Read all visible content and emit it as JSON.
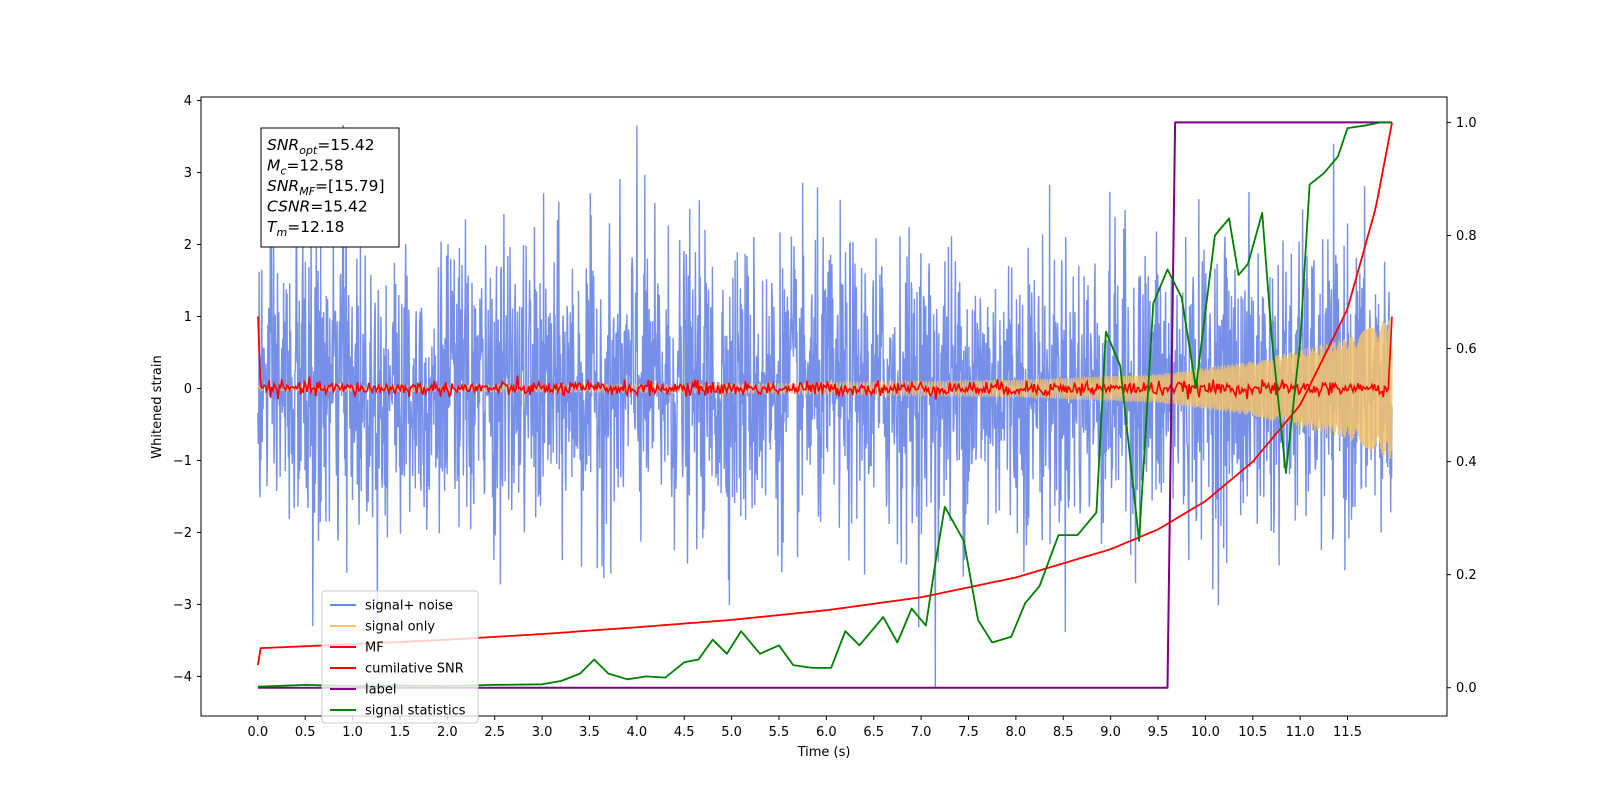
{
  "chart_data": {
    "type": "line",
    "xlabel": "Time (s)",
    "ylabel_left": "Whitened strain",
    "ylabel_right": "",
    "xlim": [
      -0.6,
      12.55
    ],
    "ylim_left": [
      -4.55,
      4.05
    ],
    "ylim_right": [
      -0.05,
      1.045
    ],
    "grid": false,
    "legend_position": "lower-left",
    "x_ticks": [
      "0.0",
      "0.5",
      "1.0",
      "1.5",
      "2.0",
      "2.5",
      "3.0",
      "3.5",
      "4.0",
      "4.5",
      "5.0",
      "5.5",
      "6.0",
      "6.5",
      "7.0",
      "7.5",
      "8.0",
      "8.5",
      "9.0",
      "9.5",
      "10.0",
      "10.5",
      "11.0",
      "11.5"
    ],
    "y_ticks_left": [
      "4",
      "3",
      "2",
      "1",
      "0",
      "−1",
      "−2",
      "−3",
      "−4"
    ],
    "y_ticks_right": [
      "1.0",
      "0.8",
      "0.6",
      "0.4",
      "0.2",
      "0.0"
    ],
    "info_box": [
      {
        "base": "SNR",
        "sub": "opt",
        "value": "=15.42"
      },
      {
        "base": "M",
        "sub": "c",
        "value": "=12.58"
      },
      {
        "base": "SNR",
        "sub": "MF",
        "value": "=[15.79]"
      },
      {
        "base": "CSNR",
        "sub": "",
        "value": "=15.42"
      },
      {
        "base": "T",
        "sub": "m",
        "value": "=12.18"
      }
    ],
    "series": [
      {
        "name": "signal+ noise",
        "axis": "left",
        "color": "#6a86e6",
        "x_range": [
          0,
          11.97
        ],
        "noise_std": 1.0,
        "notable_extremes": [
          {
            "x": 4.0,
            "y": 3.65
          },
          {
            "x": 0.9,
            "y": 3.65
          },
          {
            "x": 7.15,
            "y": -4.15
          },
          {
            "x": 0.58,
            "y": -3.3
          }
        ]
      },
      {
        "name": "signal only",
        "axis": "left",
        "color": "#f5c36b",
        "envelope": [
          {
            "x": 0,
            "amp": 0.03
          },
          {
            "x": 5.0,
            "amp": 0.06
          },
          {
            "x": 8.0,
            "amp": 0.12
          },
          {
            "x": 9.5,
            "amp": 0.2
          },
          {
            "x": 10.5,
            "amp": 0.38
          },
          {
            "x": 11.5,
            "amp": 0.7
          },
          {
            "x": 11.97,
            "amp": 1.0
          }
        ]
      },
      {
        "name": "MF",
        "axis": "left",
        "color": "#ff0000",
        "points": [
          {
            "x": 0,
            "y": 1.0
          },
          {
            "x": 0.03,
            "y": 0.0
          },
          {
            "x": 11.93,
            "y": 0.0
          },
          {
            "x": 11.97,
            "y": 1.0
          }
        ],
        "noise_std": 0.05
      },
      {
        "name": "cumilative SNR",
        "axis": "right",
        "color": "#ff0000",
        "points": [
          {
            "x": 0,
            "y": 0.04
          },
          {
            "x": 0.02,
            "y": 0.07
          },
          {
            "x": 1,
            "y": 0.077
          },
          {
            "x": 2,
            "y": 0.085
          },
          {
            "x": 3,
            "y": 0.095
          },
          {
            "x": 4,
            "y": 0.107
          },
          {
            "x": 5,
            "y": 0.12
          },
          {
            "x": 6,
            "y": 0.137
          },
          {
            "x": 7,
            "y": 0.16
          },
          {
            "x": 8,
            "y": 0.195
          },
          {
            "x": 9,
            "y": 0.245
          },
          {
            "x": 9.5,
            "y": 0.28
          },
          {
            "x": 10,
            "y": 0.33
          },
          {
            "x": 10.5,
            "y": 0.4
          },
          {
            "x": 11,
            "y": 0.5
          },
          {
            "x": 11.5,
            "y": 0.67
          },
          {
            "x": 11.8,
            "y": 0.85
          },
          {
            "x": 11.97,
            "y": 1.0
          }
        ]
      },
      {
        "name": "label",
        "axis": "right",
        "color": "#800080",
        "points": [
          {
            "x": 0,
            "y": 0.0
          },
          {
            "x": 9.6,
            "y": 0.0
          },
          {
            "x": 9.68,
            "y": 1.0
          },
          {
            "x": 11.97,
            "y": 1.0
          }
        ]
      },
      {
        "name": "signal statistics",
        "axis": "right",
        "color": "#008000",
        "points": [
          {
            "x": 0,
            "y": 0.002
          },
          {
            "x": 0.5,
            "y": 0.005
          },
          {
            "x": 1,
            "y": 0.003
          },
          {
            "x": 1.5,
            "y": 0.004
          },
          {
            "x": 2,
            "y": 0.003
          },
          {
            "x": 2.5,
            "y": 0.005
          },
          {
            "x": 3,
            "y": 0.006
          },
          {
            "x": 3.2,
            "y": 0.012
          },
          {
            "x": 3.4,
            "y": 0.025
          },
          {
            "x": 3.55,
            "y": 0.05
          },
          {
            "x": 3.7,
            "y": 0.025
          },
          {
            "x": 3.9,
            "y": 0.015
          },
          {
            "x": 4.1,
            "y": 0.02
          },
          {
            "x": 4.3,
            "y": 0.018
          },
          {
            "x": 4.5,
            "y": 0.045
          },
          {
            "x": 4.65,
            "y": 0.05
          },
          {
            "x": 4.8,
            "y": 0.085
          },
          {
            "x": 4.95,
            "y": 0.06
          },
          {
            "x": 5.1,
            "y": 0.1
          },
          {
            "x": 5.3,
            "y": 0.06
          },
          {
            "x": 5.5,
            "y": 0.075
          },
          {
            "x": 5.65,
            "y": 0.04
          },
          {
            "x": 5.85,
            "y": 0.035
          },
          {
            "x": 6.05,
            "y": 0.035
          },
          {
            "x": 6.2,
            "y": 0.1
          },
          {
            "x": 6.35,
            "y": 0.075
          },
          {
            "x": 6.6,
            "y": 0.125
          },
          {
            "x": 6.75,
            "y": 0.08
          },
          {
            "x": 6.9,
            "y": 0.14
          },
          {
            "x": 7.05,
            "y": 0.11
          },
          {
            "x": 7.15,
            "y": 0.22
          },
          {
            "x": 7.25,
            "y": 0.32
          },
          {
            "x": 7.45,
            "y": 0.26
          },
          {
            "x": 7.6,
            "y": 0.12
          },
          {
            "x": 7.75,
            "y": 0.08
          },
          {
            "x": 7.95,
            "y": 0.09
          },
          {
            "x": 8.1,
            "y": 0.15
          },
          {
            "x": 8.25,
            "y": 0.18
          },
          {
            "x": 8.45,
            "y": 0.27
          },
          {
            "x": 8.65,
            "y": 0.27
          },
          {
            "x": 8.85,
            "y": 0.31
          },
          {
            "x": 8.95,
            "y": 0.63
          },
          {
            "x": 9.1,
            "y": 0.57
          },
          {
            "x": 9.3,
            "y": 0.26
          },
          {
            "x": 9.45,
            "y": 0.68
          },
          {
            "x": 9.6,
            "y": 0.74
          },
          {
            "x": 9.75,
            "y": 0.69
          },
          {
            "x": 9.9,
            "y": 0.53
          },
          {
            "x": 10.1,
            "y": 0.8
          },
          {
            "x": 10.25,
            "y": 0.83
          },
          {
            "x": 10.35,
            "y": 0.73
          },
          {
            "x": 10.45,
            "y": 0.75
          },
          {
            "x": 10.6,
            "y": 0.84
          },
          {
            "x": 10.7,
            "y": 0.62
          },
          {
            "x": 10.85,
            "y": 0.38
          },
          {
            "x": 11.0,
            "y": 0.61
          },
          {
            "x": 11.1,
            "y": 0.89
          },
          {
            "x": 11.25,
            "y": 0.91
          },
          {
            "x": 11.4,
            "y": 0.94
          },
          {
            "x": 11.5,
            "y": 0.99
          },
          {
            "x": 11.7,
            "y": 0.995
          },
          {
            "x": 11.85,
            "y": 1.0
          },
          {
            "x": 11.97,
            "y": 1.0
          }
        ]
      }
    ],
    "legend": [
      {
        "label": "signal+ noise",
        "color": "#6a86e6"
      },
      {
        "label": "signal only",
        "color": "#f5c36b"
      },
      {
        "label": "MF",
        "color": "#ff0000"
      },
      {
        "label": "cumilative SNR",
        "color": "#ff0000"
      },
      {
        "label": "label",
        "color": "#800080"
      },
      {
        "label": "signal statistics",
        "color": "#008000"
      }
    ]
  }
}
